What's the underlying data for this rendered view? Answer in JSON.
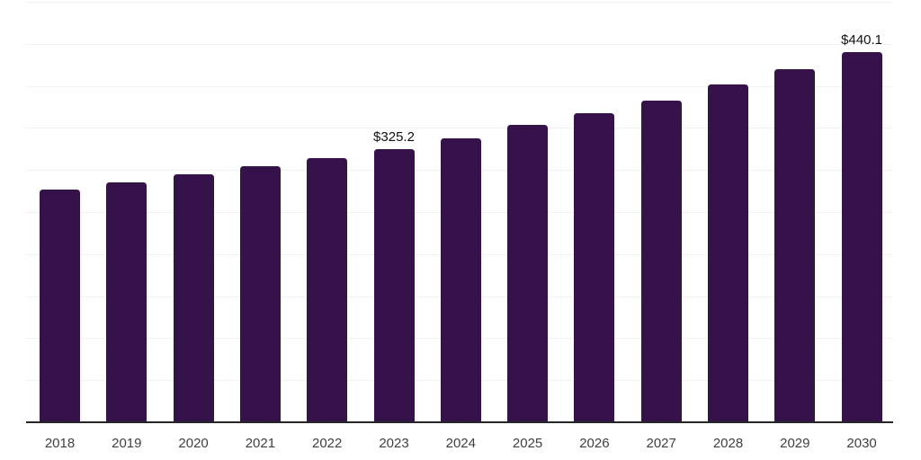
{
  "chart_data": {
    "type": "bar",
    "title": "",
    "xlabel": "",
    "ylabel": "",
    "categories": [
      "2018",
      "2019",
      "2020",
      "2021",
      "2022",
      "2023",
      "2024",
      "2025",
      "2026",
      "2027",
      "2028",
      "2029",
      "2030"
    ],
    "values": [
      276.8,
      285.3,
      294.8,
      304.3,
      314.2,
      325.2,
      338.0,
      353.2,
      367.5,
      383.0,
      401.4,
      420.2,
      440.1
    ],
    "data_labels": {
      "2023": "$325.2",
      "2030": "$440.1"
    },
    "value_prefix": "$",
    "ylim": [
      0,
      500
    ],
    "grid_interval": 50,
    "grid": true,
    "legend_position": "none",
    "y_axis_labels_visible": false,
    "colors": {
      "bar": "#36124B",
      "axis_line": "#262626",
      "grid_line": "#f2f2f2",
      "tick_label": "#3f3f3f",
      "data_label": "#111111",
      "background": "#ffffff"
    }
  }
}
